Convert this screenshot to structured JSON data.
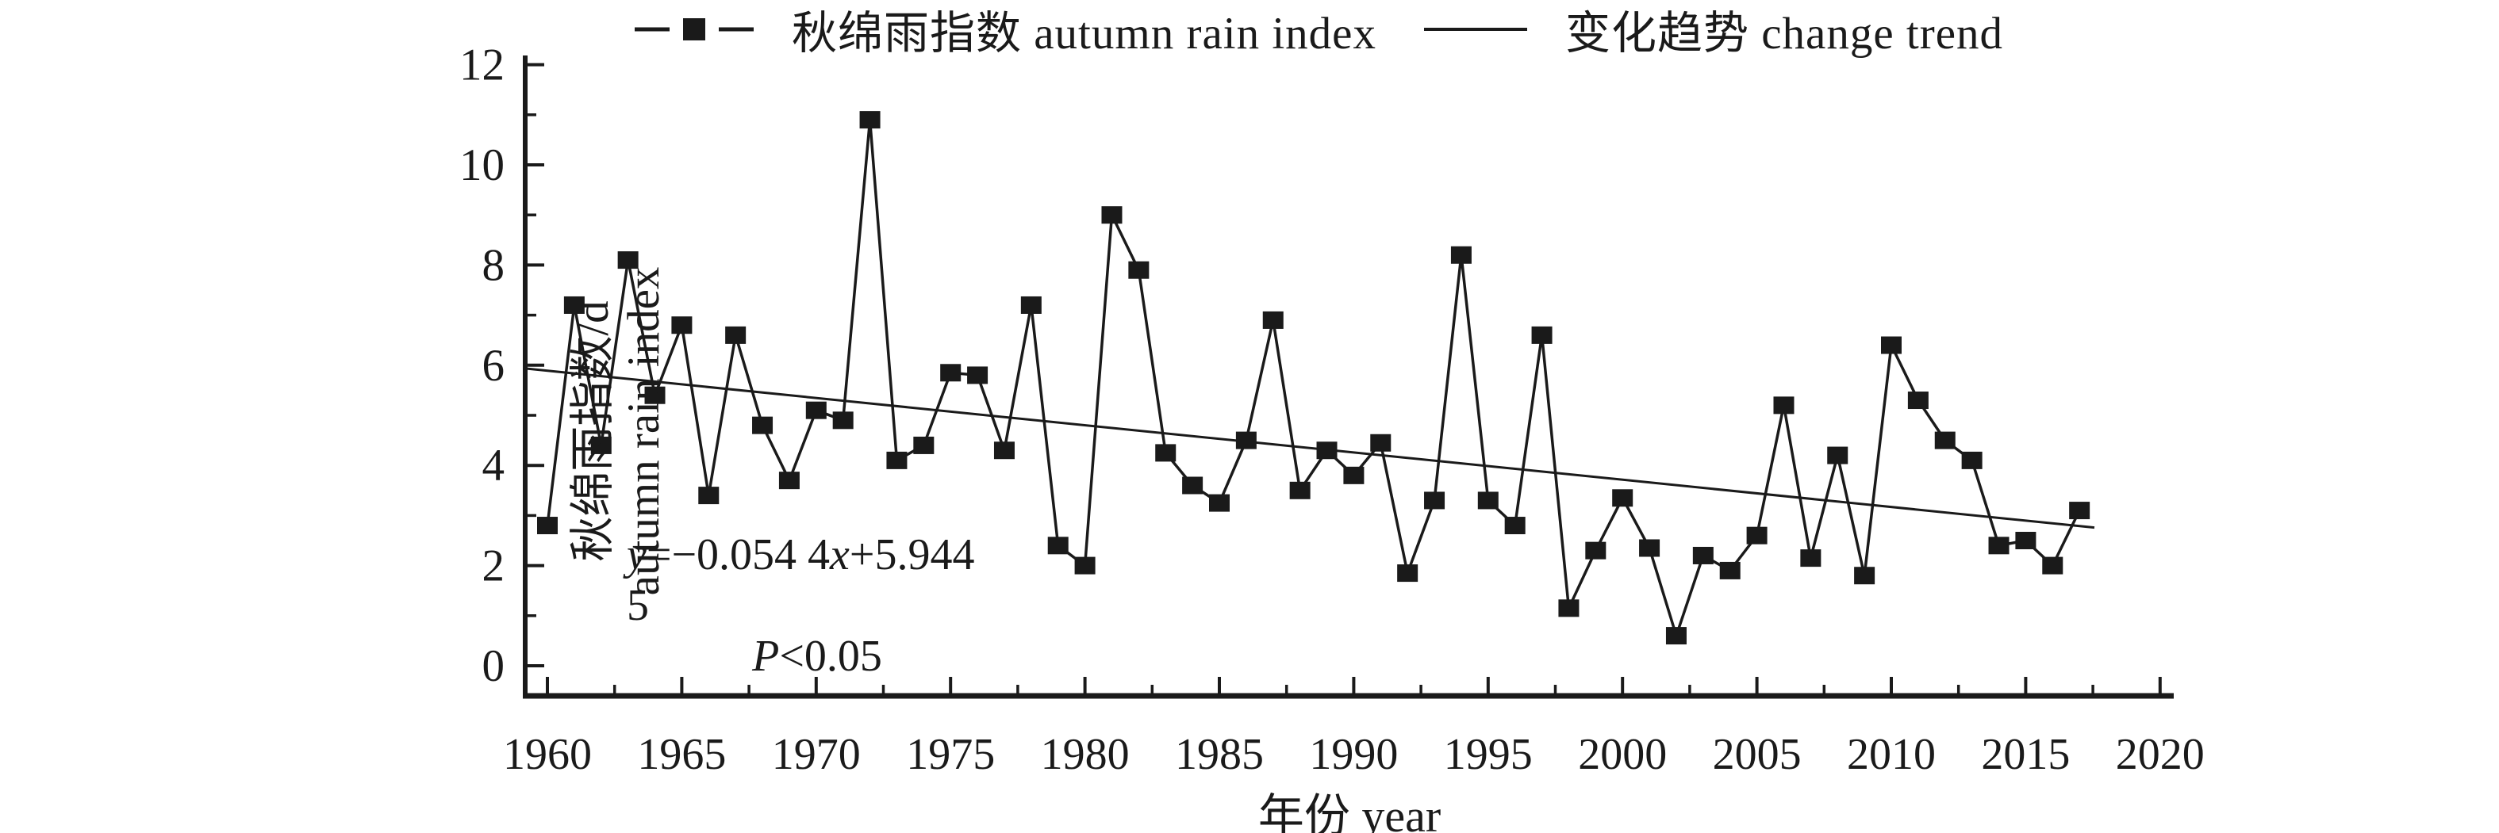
{
  "figure": {
    "background": "#ffffff",
    "ink_color": "#1a1a1a"
  },
  "legend": {
    "series1_label": "秋绵雨指数 autumn rain index",
    "series2_label": "变化趋势 change trend"
  },
  "y_axis": {
    "title_zh": "秋绵雨指数/d",
    "title_en": "autumn rain index",
    "min": 0,
    "max": 12,
    "major_ticks": [
      0,
      2,
      4,
      6,
      8,
      10,
      12
    ],
    "minor_ticks": [
      1,
      3,
      5,
      7,
      9,
      11
    ]
  },
  "x_axis": {
    "title": "年份 year",
    "min": 1960,
    "max": 2020,
    "major_ticks": [
      1960,
      1965,
      1970,
      1975,
      1980,
      1985,
      1990,
      1995,
      2000,
      2005,
      2010,
      2015,
      2020
    ],
    "minor_tick_step": 2.5
  },
  "annotation": {
    "equation_parts": [
      {
        "text": "y",
        "italic": true
      },
      {
        "text": "=−0.054 4",
        "italic": false
      },
      {
        "text": "x",
        "italic": true
      },
      {
        "text": "+5.944 5",
        "italic": false
      }
    ],
    "p_value_parts": [
      {
        "text": "P",
        "italic": true
      },
      {
        "text": "<0.05",
        "italic": false
      }
    ]
  },
  "chart_data": {
    "type": "line",
    "title": "",
    "xlabel": "年份 year",
    "ylabel": "秋绵雨指数/d autumn rain index",
    "xlim": [
      1958,
      2022
    ],
    "ylim": [
      0,
      12
    ],
    "grid": false,
    "legend_position": "top-center",
    "x": [
      1960,
      1961,
      1962,
      1963,
      1964,
      1965,
      1966,
      1967,
      1968,
      1969,
      1970,
      1971,
      1972,
      1973,
      1974,
      1975,
      1976,
      1977,
      1978,
      1979,
      1980,
      1981,
      1982,
      1983,
      1984,
      1985,
      1986,
      1987,
      1988,
      1989,
      1990,
      1991,
      1992,
      1993,
      1994,
      1995,
      1996,
      1997,
      1998,
      1999,
      2000,
      2001,
      2002,
      2003,
      2004,
      2005,
      2006,
      2007,
      2008,
      2009,
      2010,
      2011,
      2012,
      2013,
      2014,
      2015,
      2016,
      2017
    ],
    "series": [
      {
        "name": "秋绵雨指数 autumn rain index",
        "marker": "filled-square",
        "values": [
          2.8,
          7.2,
          4.4,
          8.1,
          5.4,
          6.8,
          3.4,
          6.6,
          4.8,
          3.7,
          5.1,
          4.9,
          10.9,
          4.1,
          4.4,
          5.85,
          5.8,
          4.3,
          7.2,
          2.4,
          2.0,
          9.0,
          7.9,
          4.25,
          3.6,
          3.25,
          4.5,
          6.9,
          3.5,
          4.3,
          3.8,
          4.45,
          1.85,
          3.3,
          8.2,
          3.3,
          2.8,
          6.6,
          1.15,
          2.3,
          3.35,
          2.35,
          0.6,
          2.2,
          1.9,
          2.6,
          5.2,
          2.15,
          4.2,
          1.8,
          6.4,
          5.3,
          4.5,
          4.1,
          2.4,
          2.5,
          2.0,
          3.1
        ]
      },
      {
        "name": "变化趋势 change trend",
        "type": "trend",
        "slope": -0.0544,
        "intercept": 5.9445,
        "x_index_origin_year": 1959,
        "equation": "y=−0.054 4x+5.944 5",
        "significance": "P<0.05"
      }
    ]
  }
}
